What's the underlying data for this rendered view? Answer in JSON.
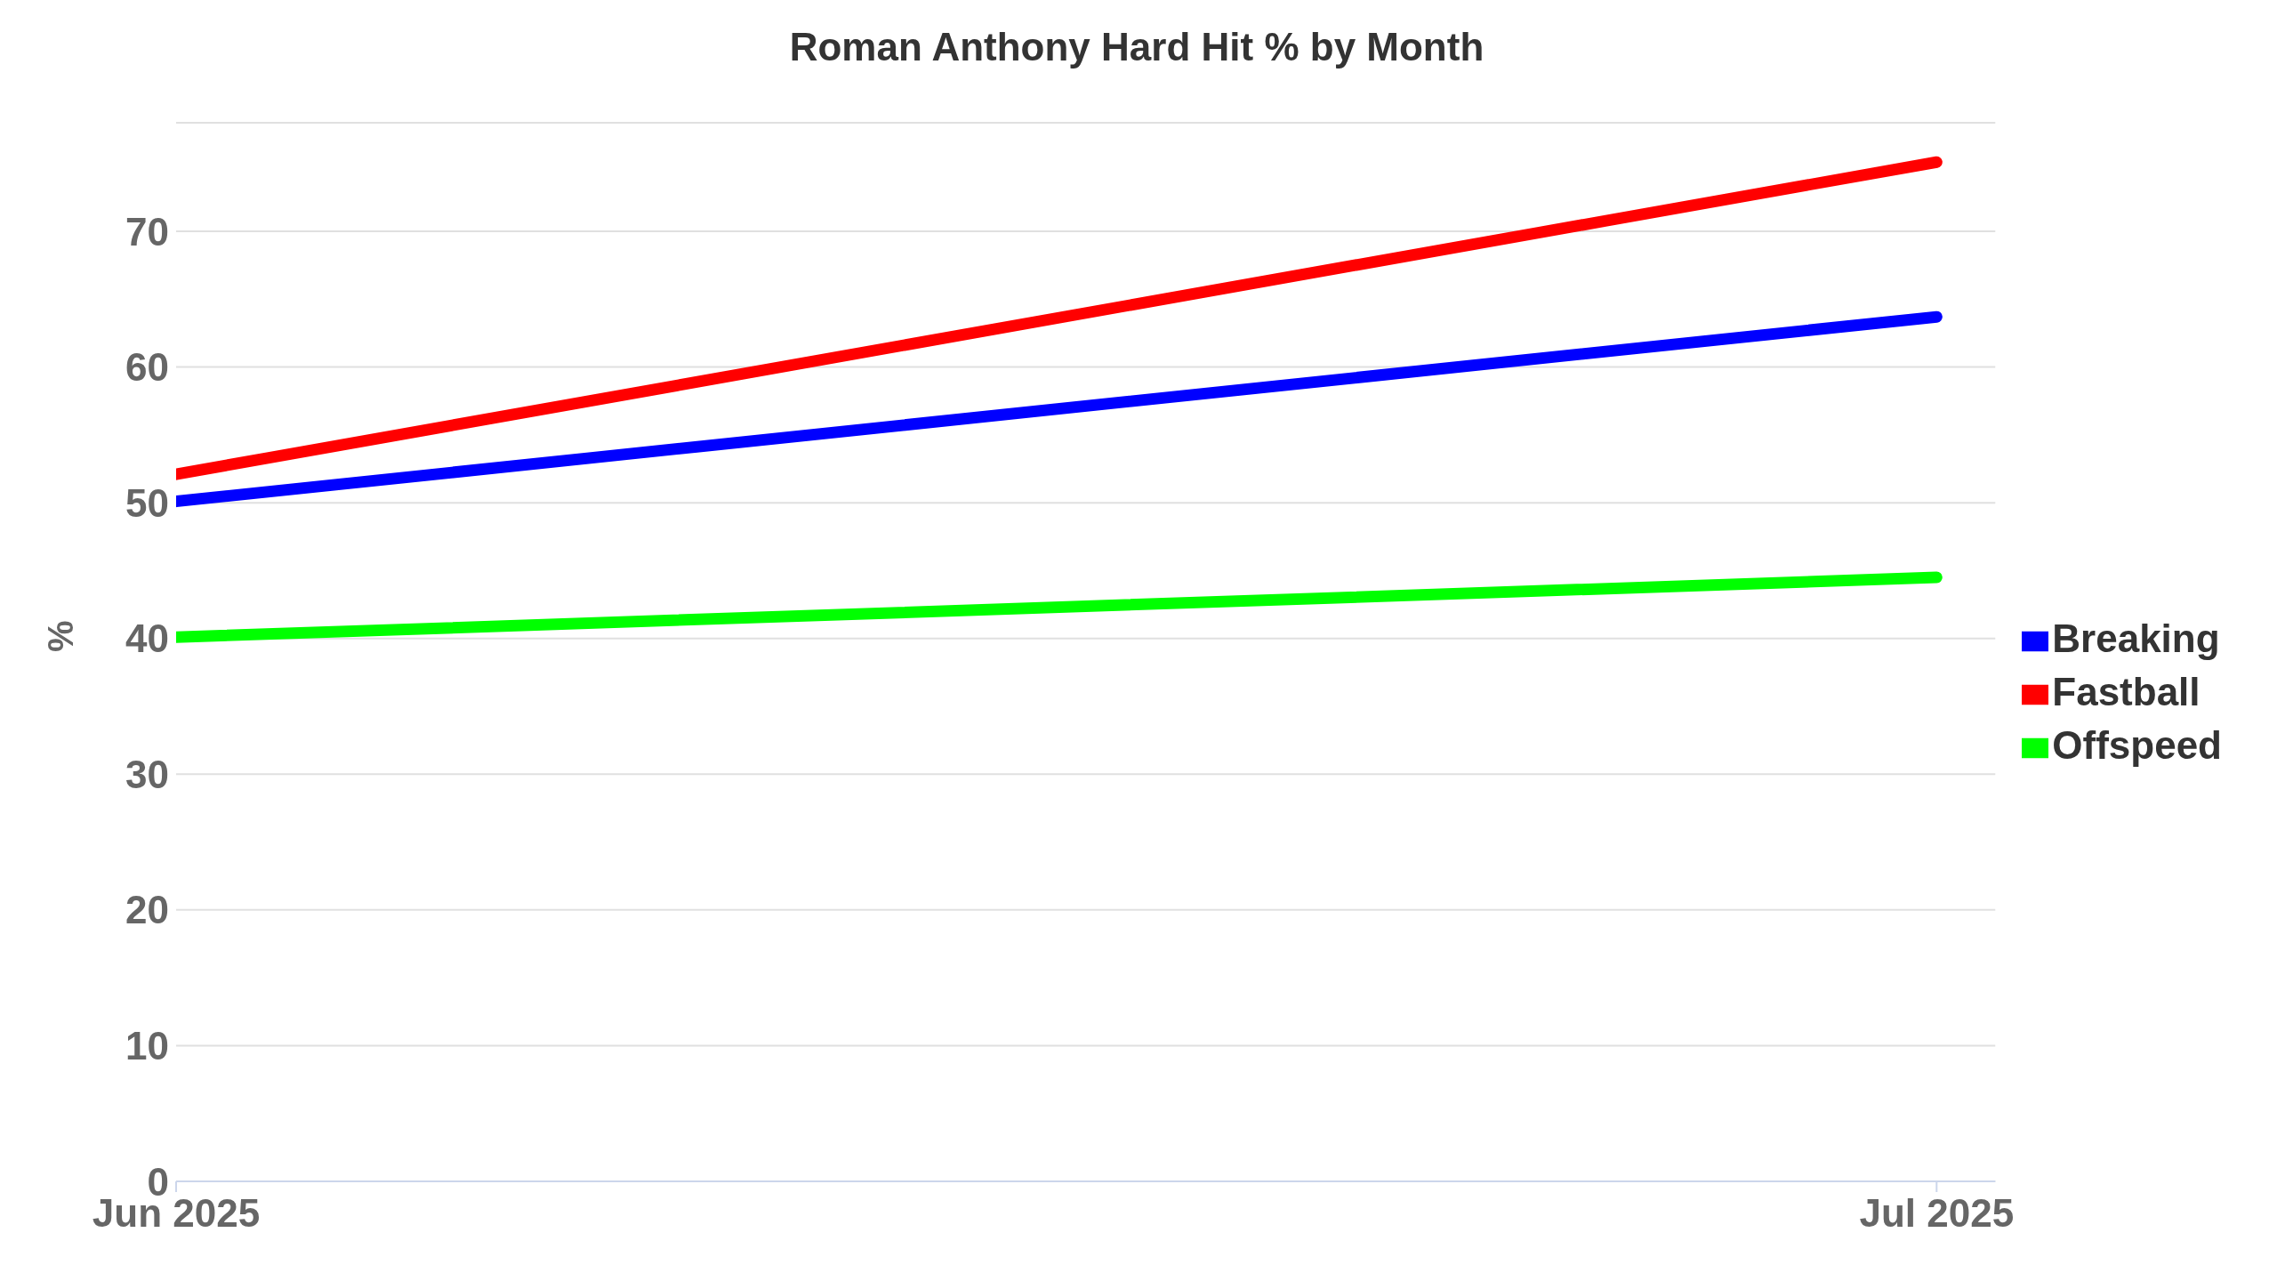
{
  "chart_data": {
    "type": "line",
    "title": "Roman Anthony Hard Hit % by Month",
    "ylabel": "%",
    "x": [
      "2025-06",
      "2025-07"
    ],
    "xlim": [
      "2025-06-01",
      "2025-07-02"
    ],
    "xticks": [
      {
        "value": "2025-06",
        "label": "Jun 2025"
      },
      {
        "value": "2025-07",
        "label": "Jul 2025"
      }
    ],
    "ylim": [
      0,
      78
    ],
    "yticks": [
      0,
      10,
      20,
      30,
      40,
      50,
      60,
      70
    ],
    "series": [
      {
        "name": "Fastball",
        "color": "#ff0000",
        "values": [
          52.1,
          75.1
        ]
      },
      {
        "name": "Breaking",
        "color": "#0000ff",
        "values": [
          50.1,
          63.7
        ]
      },
      {
        "name": "Offspeed",
        "color": "#00ff00",
        "values": [
          40.1,
          44.5
        ]
      }
    ],
    "grid": "y",
    "legend": "right",
    "marker": "none",
    "line_style": "solid"
  }
}
